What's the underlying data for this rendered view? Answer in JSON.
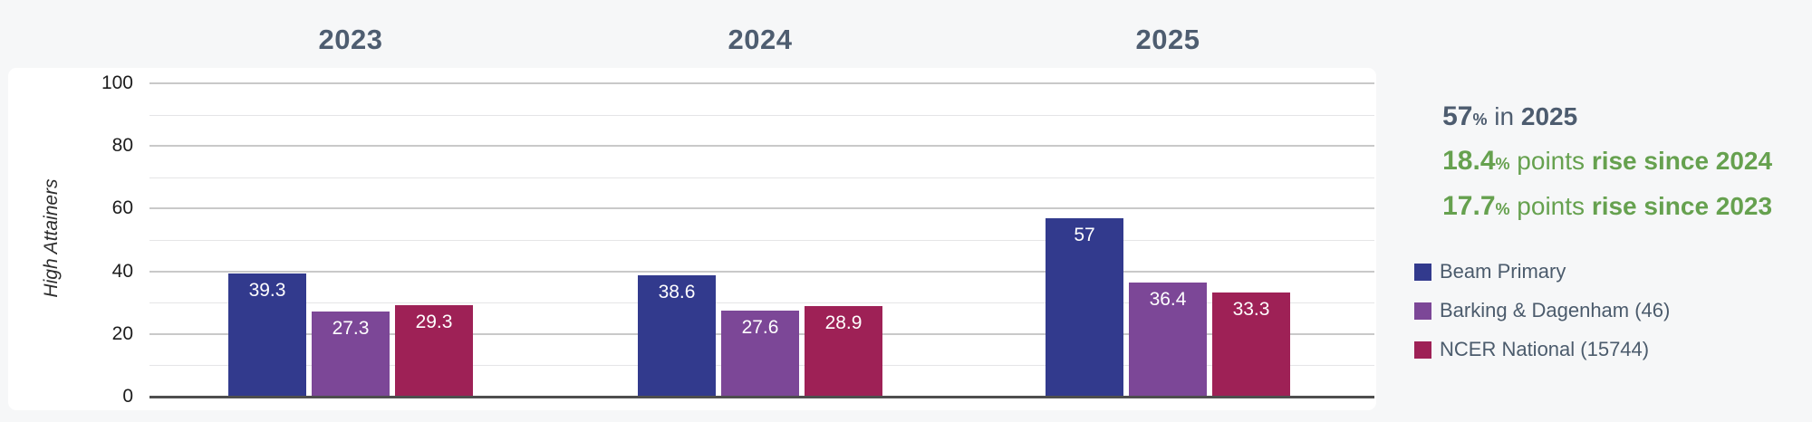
{
  "colors": {
    "page_background": "#f6f7f8",
    "card_background": "#ffffff",
    "title_text": "#4e5d70",
    "summary_slate": "#4d5c6f",
    "summary_green": "#66a14f",
    "legend_text": "#4b5b6c",
    "gridline_major": "#c9c9c9",
    "gridline_minor": "#e5e5e7",
    "axis_line": "#4e4e4e",
    "series_blue": "#323a8d",
    "series_purple": "#7c4797",
    "series_crimson": "#9e2156"
  },
  "chart_data": {
    "type": "bar",
    "title": "",
    "ylabel": "High Attainers",
    "ylim": [
      0,
      100
    ],
    "yticks": [
      0,
      20,
      40,
      60,
      80,
      100
    ],
    "gridline_step": 10,
    "grid": true,
    "legend_position": "right",
    "categories": [
      "2023",
      "2024",
      "2025"
    ],
    "series": [
      {
        "name": "Beam Primary",
        "color": "#323a8d",
        "values": [
          39.3,
          38.6,
          57
        ]
      },
      {
        "name": "Barking & Dagenham (46)",
        "color": "#7c4797",
        "values": [
          27.3,
          27.6,
          36.4
        ]
      },
      {
        "name": "NCER National (15744)",
        "color": "#9e2156",
        "values": [
          29.3,
          28.9,
          33.3
        ]
      }
    ]
  },
  "summary": {
    "lines": [
      {
        "value": "57",
        "percent_sign": "%",
        "connector": " in ",
        "emphasis": "2025"
      },
      {
        "value": "18.4",
        "percent_sign": "%",
        "connector": " points ",
        "emphasis": "rise since 2024"
      },
      {
        "value": "17.7",
        "percent_sign": "%",
        "connector": " points ",
        "emphasis": "rise since 2023"
      }
    ]
  }
}
